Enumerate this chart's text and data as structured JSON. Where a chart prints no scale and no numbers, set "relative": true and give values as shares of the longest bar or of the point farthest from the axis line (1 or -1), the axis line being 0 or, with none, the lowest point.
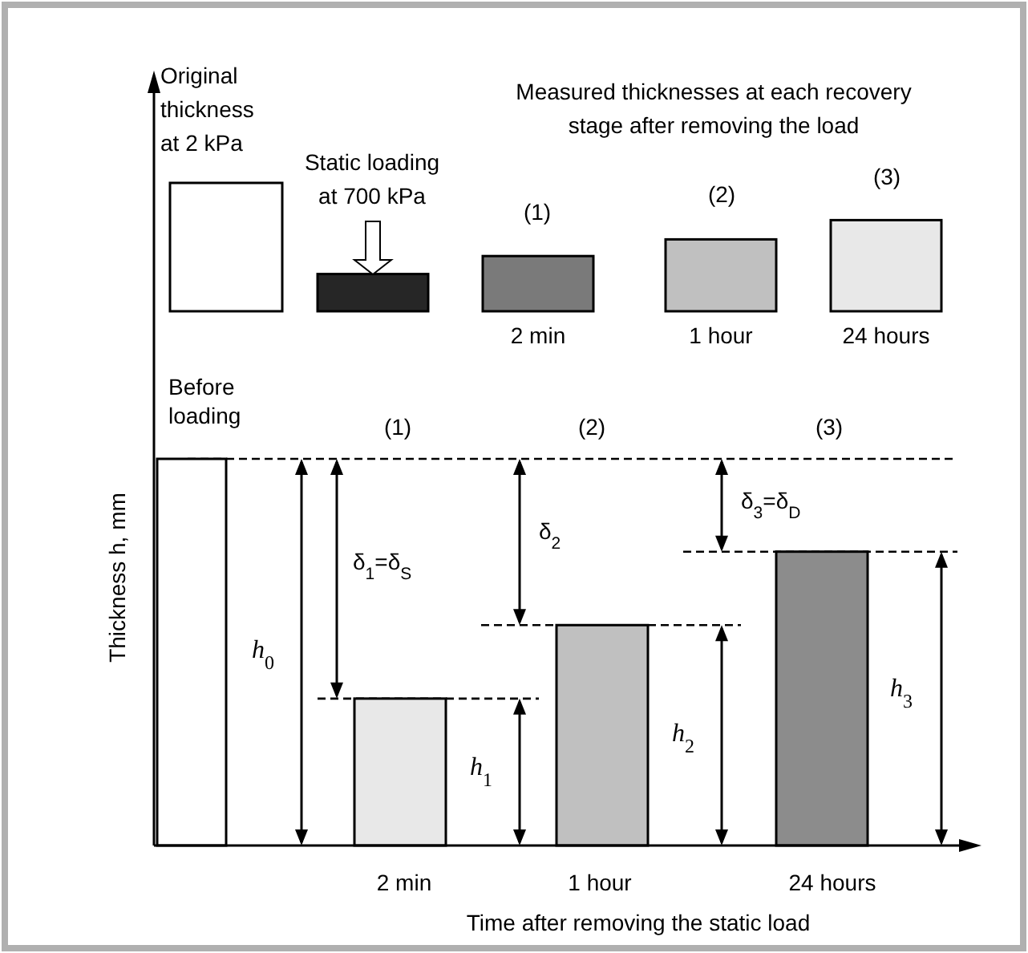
{
  "chart_data": [
    {
      "type": "bar",
      "relative": true,
      "categories": [
        null,
        null,
        "2 min",
        "1 hour",
        "24 hours"
      ],
      "values": [
        1,
        0.29,
        0.43,
        0.56,
        0.71
      ],
      "colors": [
        "#ffffff",
        "#262626",
        "#7a7a7a",
        "#c0c0c0",
        "#e8e8e8"
      ],
      "annotations": [
        "Original thickness at 2 kPa",
        "Static loading at 700 kPa",
        "Measured thicknesses at each recovery stage after removing the load",
        "(1)",
        "(2)",
        "(3)"
      ]
    },
    {
      "type": "bar",
      "relative": true,
      "categories": [
        null,
        "2 min",
        "1 hour",
        "24 hours"
      ],
      "values": [
        1,
        0.38,
        0.57,
        0.76
      ],
      "colors": [
        "#ffffff",
        "#e8e8e8",
        "#c0c0c0",
        "#8c8c8c"
      ],
      "xlabel": "Time after removing the static load",
      "ylabel": "Thickness h, mm",
      "annotations": [
        "Before loading",
        "(1)",
        "(2)",
        "(3)",
        "δ$_{1}$=δ$_{S}$",
        "δ$_{2}$",
        "δ$_{3}$=δ$_{D}$",
        "h$_{0}$",
        "h$_{1}$",
        "h$_{2}$",
        "h$_{3}$"
      ]
    }
  ]
}
